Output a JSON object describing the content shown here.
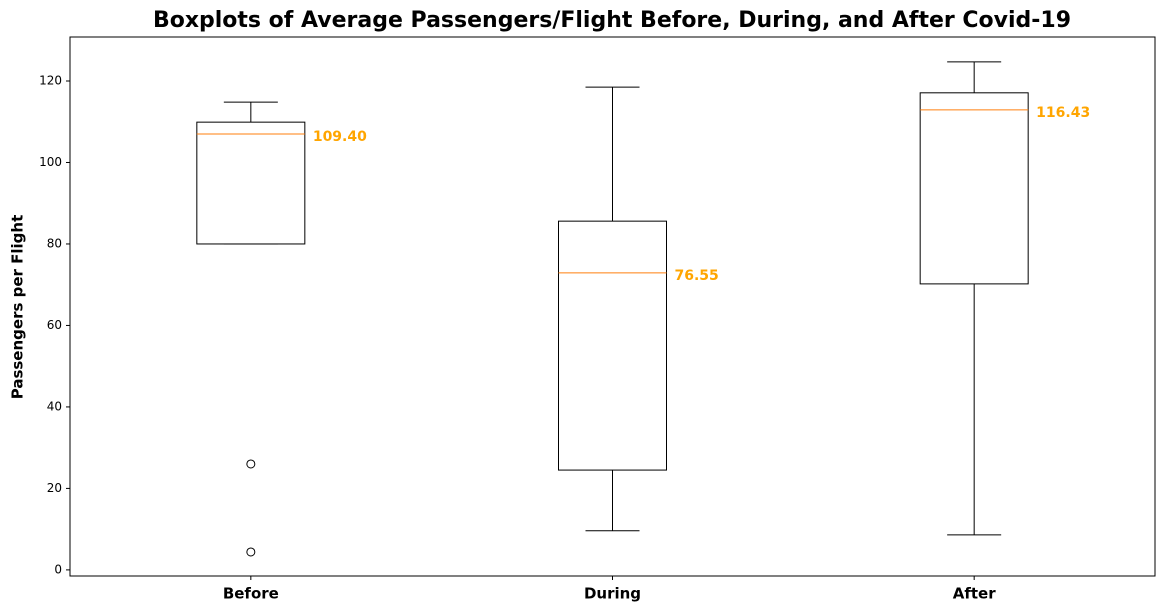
{
  "chart_data": {
    "type": "box",
    "title": "Boxplots of Average Passengers/Flight Before, During, and After Covid-19",
    "y_label": "Passengers per Flight",
    "categories": [
      "Before",
      "During",
      "After"
    ],
    "boxes": [
      {
        "whislo": 80.0,
        "q1": 80.0,
        "med": 107.0,
        "q3": 109.9,
        "whishi": 114.8,
        "fliers": [
          26.0,
          4.4
        ]
      },
      {
        "whislo": 9.6,
        "q1": 24.5,
        "med": 72.9,
        "q3": 85.6,
        "whishi": 118.5,
        "fliers": []
      },
      {
        "whislo": 8.6,
        "q1": 70.2,
        "med": 112.9,
        "q3": 117.1,
        "whishi": 124.7,
        "fliers": []
      }
    ],
    "annotations": [
      "109.40",
      "76.55",
      "116.43"
    ],
    "box_color": "#000000",
    "median_color": "#ff7f0e",
    "annotation_color": "#ffa500",
    "ylim": [
      -1.5,
      130.8
    ],
    "yticks": [
      0,
      20,
      40,
      60,
      80,
      100,
      120
    ],
    "grid": false
  }
}
